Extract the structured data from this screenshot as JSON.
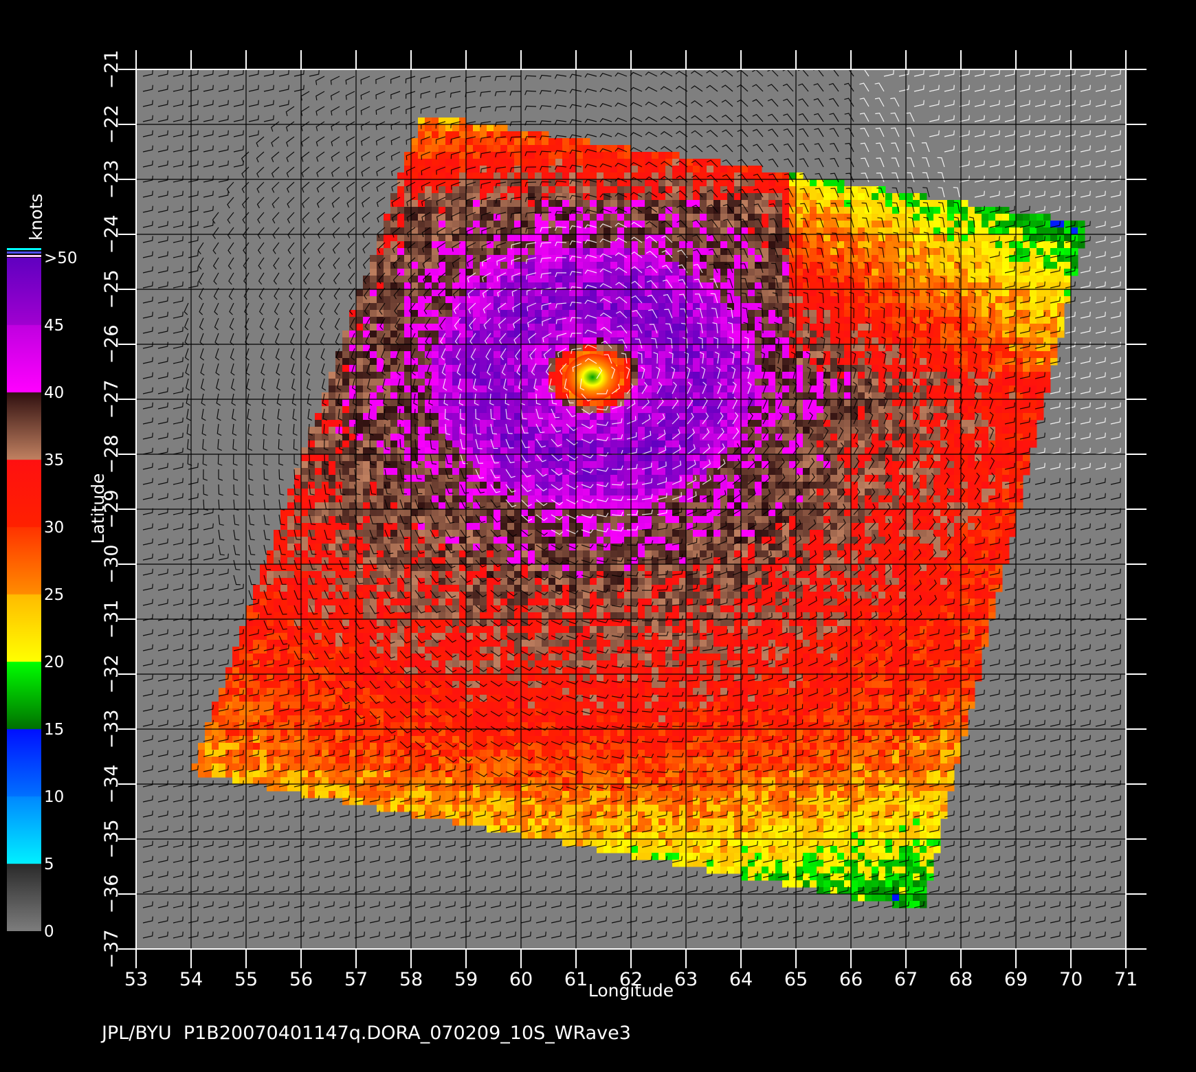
{
  "chart_data": {
    "type": "heatmap",
    "x_range": [
      53,
      71
    ],
    "y_range": [
      -37,
      -21
    ],
    "x_ticks": [
      "53",
      "54",
      "55",
      "56",
      "57",
      "58",
      "59",
      "60",
      "61",
      "62",
      "63",
      "64",
      "65",
      "66",
      "67",
      "68",
      "69",
      "70",
      "71"
    ],
    "y_ticks": [
      "−21",
      "−22",
      "−23",
      "−24",
      "−25",
      "−26",
      "−27",
      "−28",
      "−29",
      "−30",
      "−31",
      "−32",
      "−33",
      "−34",
      "−35",
      "−36",
      "−37"
    ],
    "xlabel": "Longitude",
    "ylabel": "Latitude",
    "grid": true,
    "storm_center": {
      "lon": 61.3,
      "lat": -26.6
    },
    "swath_corners": [
      {
        "lon": 58.2,
        "lat": -21.8
      },
      {
        "lon": 70.3,
        "lat": -23.8
      },
      {
        "lon": 67.3,
        "lat": -36.3
      },
      {
        "lon": 54.0,
        "lat": -33.8
      }
    ],
    "colorbar": {
      "unit": "knots",
      "labels": [
        ">50",
        "45",
        "40",
        "35",
        "30",
        "25",
        "20",
        "15",
        "10",
        "5",
        "0"
      ],
      "segments": [
        {
          "from": 0,
          "to": 5,
          "colors": [
            "#7c7c7c",
            "#2a2a2a"
          ]
        },
        {
          "from": 5,
          "to": 10,
          "colors": [
            "#00f0ff",
            "#0088ff"
          ]
        },
        {
          "from": 10,
          "to": 15,
          "colors": [
            "#0070ff",
            "#0010ff"
          ]
        },
        {
          "from": 15,
          "to": 20,
          "colors": [
            "#007000",
            "#00ff00"
          ]
        },
        {
          "from": 20,
          "to": 25,
          "colors": [
            "#ffff00",
            "#ffbb00"
          ]
        },
        {
          "from": 25,
          "to": 30,
          "colors": [
            "#ff8c00",
            "#ff3300"
          ]
        },
        {
          "from": 30,
          "to": 35,
          "colors": [
            "#ff2000",
            "#ff1010"
          ]
        },
        {
          "from": 35,
          "to": 40,
          "colors": [
            "#c08060",
            "#301010"
          ]
        },
        {
          "from": 40,
          "to": 45,
          "colors": [
            "#ff00ff",
            "#c000e0"
          ]
        },
        {
          "from": 45,
          "to": 50,
          "colors": [
            "#a000d0",
            "#6000c0"
          ]
        }
      ]
    }
  },
  "footer": {
    "text": "JPL/BYU  P1B20070401147q.DORA_070209_10S_WRave3"
  },
  "colors": {
    "background": "#000000",
    "land_mask": "#7f7f7f",
    "grid": "#000000",
    "axis": "#ffffff"
  }
}
